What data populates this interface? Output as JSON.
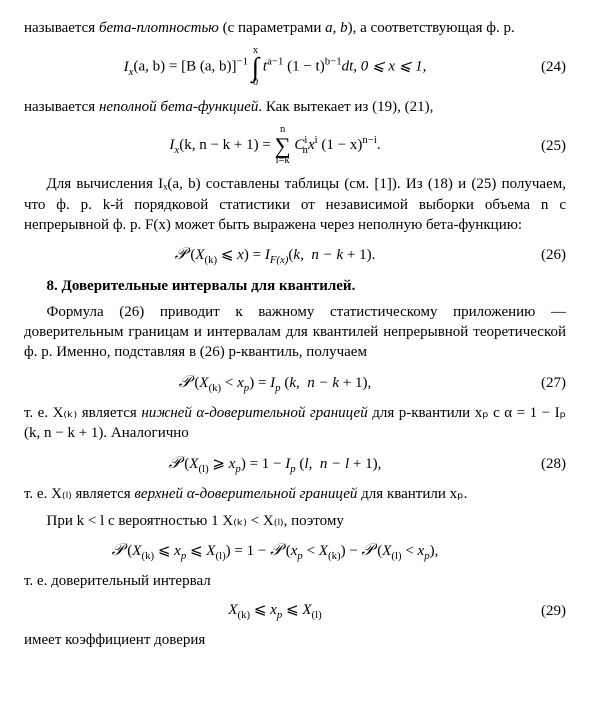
{
  "p1a": "называется ",
  "p1b": "бета-плотностью",
  "p1c": " (с параметрами ",
  "p1d": "a, b",
  "p1e": "), а соответствующая ф. р.",
  "eq24": {
    "lhs": "I",
    "lhs_sub": "x",
    "lhs_args": "(a, b) = [B (a, b)]",
    "inv": "−1",
    "int_top": "x",
    "int_bot": "0",
    "rhs1": " t",
    "exp1_a": "a−1",
    "mid1": " (1 − t)",
    "exp1_b": "b−1",
    "rhs2": "dt,  0 ⩽ x ⩽ 1,",
    "num": "(24)"
  },
  "p2a": "называется ",
  "p2b": "неполной бета-функцией",
  "p2c": ". Как вытекает из (19), (21),",
  "eq25": {
    "lhs": "I",
    "lhs_sub": "x",
    "args": "(k, n − k + 1) = ",
    "sum_top": "n",
    "sum_bot": "i=k",
    "c": "C",
    "c_sub": "n",
    "c_sup": "i",
    "x": "x",
    "x_sup": "i",
    "paren": " (1 − x)",
    "paren_sup": "n−i",
    "dot": ".",
    "num": "(25)"
  },
  "p3": "Для вычисления Iₓ(a, b) составлены таблицы (см. [1]). Из (18) и (25) получаем, что ф. р. k-й порядковой статистики от независимой выборки объема n с непрерывной ф. р. F(x) может быть выражена через неполную бета-функцию:",
  "eq26": {
    "body": "𝒫 (X₍ₖ₎ ⩽ x) = I_F(x)(k,  n − k + 1).",
    "num": "(26)"
  },
  "h8": "8. Доверительные интервалы для квантилей.",
  "p4": "Формула (26) приводит к важному статистическому приложению — доверительным границам и интервалам для квантилей непрерывной теоретической ф. р. Именно, подставляя в (26) p-квантиль, получаем",
  "eq27": {
    "body": "𝒫 (X₍ₖ₎ < xₚ) = Iₚ (k,  n − k + 1),",
    "num": "(27)"
  },
  "p5a": "т. е. X₍ₖ₎ является ",
  "p5b": "нижней α-доверительной границей",
  "p5c": " для p-квантили xₚ с α = 1 − Iₚ (k, n − k + 1). Аналогично",
  "eq28": {
    "body": "𝒫 (X₍ₗ₎ ⩾ xₚ) = 1 − Iₚ (l,  n − l + 1),",
    "num": "(28)"
  },
  "p6a": "т. е. X₍ₗ₎ является ",
  "p6b": "верхней α-доверительной границей",
  "p6c": " для квантили xₚ.",
  "p7": "При k < l с вероятностью 1 X₍ₖ₎ < X₍ₗ₎, поэтому",
  "eq_unn": "𝒫 (X₍ₖ₎ ⩽ xₚ ⩽ X₍ₗ₎) = 1 − 𝒫 (xₚ < X₍ₖ₎) − 𝒫 (X₍ₗ₎ < xₚ),",
  "p8": "т. е. доверительный интервал",
  "eq29": {
    "body": "X₍ₖ₎ ⩽ xₚ ⩽ X₍ₗ₎",
    "num": "(29)"
  },
  "p9": "имеет коэффициент доверия"
}
